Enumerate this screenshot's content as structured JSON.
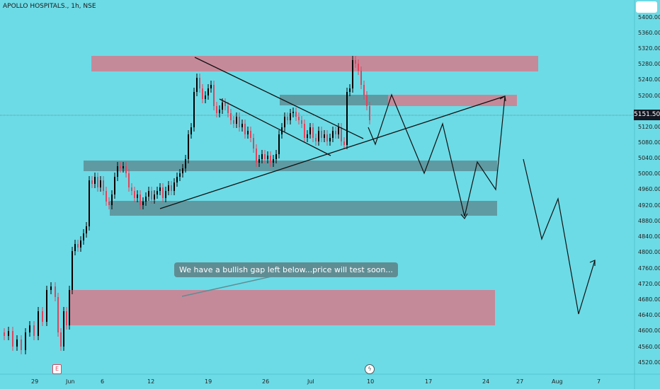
{
  "header": {
    "symbol_title": "APOLLO HOSPITALS., 1h, NSE"
  },
  "price_axis": {
    "ticks": [
      "5400.00",
      "5360.00",
      "5320.00",
      "5280.00",
      "5240.00",
      "5200.00",
      "5120.00",
      "5080.00",
      "5040.00",
      "5000.00",
      "4960.00",
      "4920.00",
      "4880.00",
      "4840.00",
      "4800.00",
      "4760.00",
      "4720.00",
      "4680.00",
      "4640.00",
      "4600.00",
      "4560.00",
      "4520.00"
    ],
    "current_price": "5151.50"
  },
  "time_axis": {
    "ticks": [
      "29",
      "Jun",
      "6",
      "12",
      "19",
      "26",
      "Jul",
      "10",
      "17",
      "24",
      "27",
      "Aug",
      "7"
    ]
  },
  "annotation": {
    "text": "We have a bullish gap left below...price will test soon..."
  },
  "events": {
    "earnings_badge": "E",
    "dividend_badge": "ϟ"
  },
  "colors": {
    "background": "#6cdbe6",
    "supply_zone": "#c58a9a",
    "demand_zone": "#5f9aa2",
    "candle_up": "#000000",
    "candle_down": "#e0445c"
  },
  "chart_data": {
    "type": "candlestick",
    "ylim": [
      4500,
      5440
    ],
    "zones": [
      {
        "kind": "supply",
        "low": 5262,
        "high": 5303
      },
      {
        "kind": "supply",
        "low": 5175,
        "high": 5190
      },
      {
        "kind": "demand",
        "low": 5173,
        "high": 5190
      },
      {
        "kind": "demand",
        "low": 5005,
        "high": 5035
      },
      {
        "kind": "demand",
        "low": 4893,
        "high": 4935
      },
      {
        "kind": "supply",
        "low": 4610,
        "high": 4700
      }
    ]
  }
}
